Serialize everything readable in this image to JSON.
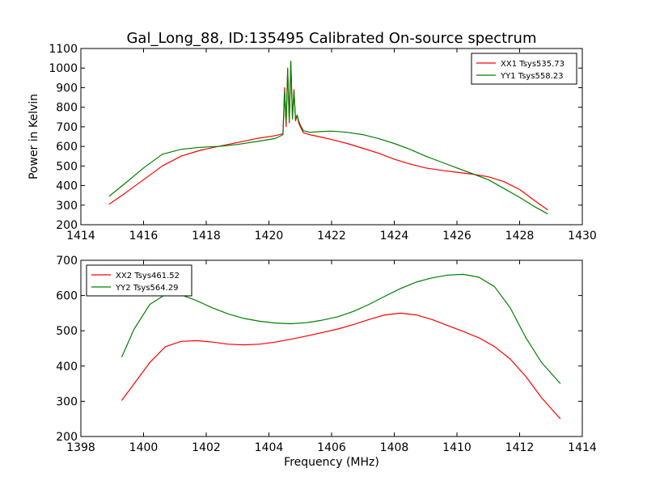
{
  "title": "Gal_Long_88, ID:135495 Calibrated On-source spectrum",
  "chart_data": [
    {
      "type": "line",
      "ylabel": "Power in Kelvin",
      "xlabel": "",
      "xlim": [
        1414,
        1430
      ],
      "ylim": [
        200,
        1100
      ],
      "xticks": [
        "1414",
        "1416",
        "1418",
        "1420",
        "1422",
        "1424",
        "1426",
        "1428",
        "1430"
      ],
      "yticks": [
        "200",
        "300",
        "400",
        "500",
        "600",
        "700",
        "800",
        "900",
        "1000",
        "1100"
      ],
      "legend_position": "top-right",
      "series": [
        {
          "name": "XX1 Tsys535.73",
          "color": "#ff0000",
          "x": [
            1414.9,
            1415.4,
            1416.0,
            1416.6,
            1417.2,
            1417.8,
            1418.4,
            1419.0,
            1419.6,
            1420.2,
            1420.45,
            1420.5,
            1420.55,
            1420.6,
            1420.65,
            1420.7,
            1420.75,
            1420.8,
            1420.85,
            1420.9,
            1420.95,
            1421.0,
            1421.1,
            1421.3,
            1421.6,
            1422.0,
            1422.5,
            1423.0,
            1423.5,
            1424.0,
            1424.5,
            1425.0,
            1425.5,
            1426.0,
            1426.5,
            1427.0,
            1427.5,
            1428.0,
            1428.5,
            1428.9
          ],
          "y": [
            305,
            360,
            430,
            500,
            550,
            580,
            600,
            620,
            640,
            655,
            665,
            900,
            700,
            1000,
            720,
            1030,
            750,
            890,
            730,
            760,
            720,
            700,
            670,
            660,
            650,
            635,
            615,
            590,
            565,
            535,
            510,
            490,
            478,
            468,
            458,
            445,
            420,
            380,
            320,
            275
          ]
        },
        {
          "name": "YY1 Tsys558.23",
          "color": "#008000",
          "x": [
            1414.9,
            1415.4,
            1416.0,
            1416.6,
            1417.2,
            1417.8,
            1418.4,
            1419.0,
            1419.6,
            1420.2,
            1420.45,
            1420.5,
            1420.55,
            1420.6,
            1420.65,
            1420.7,
            1420.75,
            1420.8,
            1420.85,
            1420.9,
            1420.95,
            1421.0,
            1421.1,
            1421.3,
            1421.6,
            1422.0,
            1422.5,
            1423.0,
            1423.5,
            1424.0,
            1424.5,
            1425.0,
            1425.5,
            1426.0,
            1426.5,
            1427.0,
            1427.5,
            1428.0,
            1428.5,
            1428.9
          ],
          "y": [
            345,
            410,
            490,
            560,
            585,
            595,
            600,
            610,
            625,
            640,
            660,
            880,
            720,
            990,
            730,
            1035,
            740,
            880,
            740,
            760,
            730,
            710,
            680,
            672,
            675,
            678,
            672,
            660,
            640,
            615,
            585,
            550,
            520,
            490,
            460,
            430,
            385,
            340,
            290,
            255
          ]
        }
      ]
    },
    {
      "type": "line",
      "ylabel": "",
      "xlabel": "Frequency (MHz)",
      "xlim": [
        1398,
        1414
      ],
      "ylim": [
        200,
        700
      ],
      "xticks": [
        "1398",
        "1400",
        "1402",
        "1404",
        "1406",
        "1408",
        "1410",
        "1412",
        "1414"
      ],
      "yticks": [
        "200",
        "300",
        "400",
        "500",
        "600",
        "700"
      ],
      "legend_position": "top-left",
      "series": [
        {
          "name": "XX2 Tsys461.52",
          "color": "#ff0000",
          "x": [
            1399.3,
            1399.7,
            1400.2,
            1400.7,
            1401.2,
            1401.7,
            1402.2,
            1402.7,
            1403.2,
            1403.7,
            1404.2,
            1404.7,
            1405.2,
            1405.7,
            1406.2,
            1406.7,
            1407.2,
            1407.7,
            1408.2,
            1408.7,
            1409.2,
            1409.7,
            1410.2,
            1410.7,
            1411.2,
            1411.7,
            1412.2,
            1412.7,
            1413.3
          ],
          "y": [
            302,
            350,
            410,
            455,
            470,
            472,
            468,
            462,
            460,
            462,
            468,
            476,
            485,
            495,
            505,
            518,
            532,
            545,
            550,
            545,
            532,
            515,
            498,
            480,
            455,
            420,
            370,
            310,
            250
          ]
        },
        {
          "name": "YY2 Tsys564.29",
          "color": "#008000",
          "x": [
            1399.3,
            1399.7,
            1400.2,
            1400.7,
            1401.2,
            1401.7,
            1402.2,
            1402.7,
            1403.2,
            1403.7,
            1404.2,
            1404.7,
            1405.2,
            1405.7,
            1406.2,
            1406.7,
            1407.2,
            1407.7,
            1408.2,
            1408.7,
            1409.2,
            1409.7,
            1410.2,
            1410.7,
            1411.2,
            1411.7,
            1412.2,
            1412.7,
            1413.3
          ],
          "y": [
            425,
            505,
            575,
            603,
            602,
            585,
            565,
            548,
            535,
            527,
            522,
            520,
            523,
            530,
            540,
            555,
            575,
            598,
            620,
            638,
            650,
            658,
            660,
            652,
            625,
            565,
            480,
            410,
            350
          ]
        }
      ]
    }
  ]
}
